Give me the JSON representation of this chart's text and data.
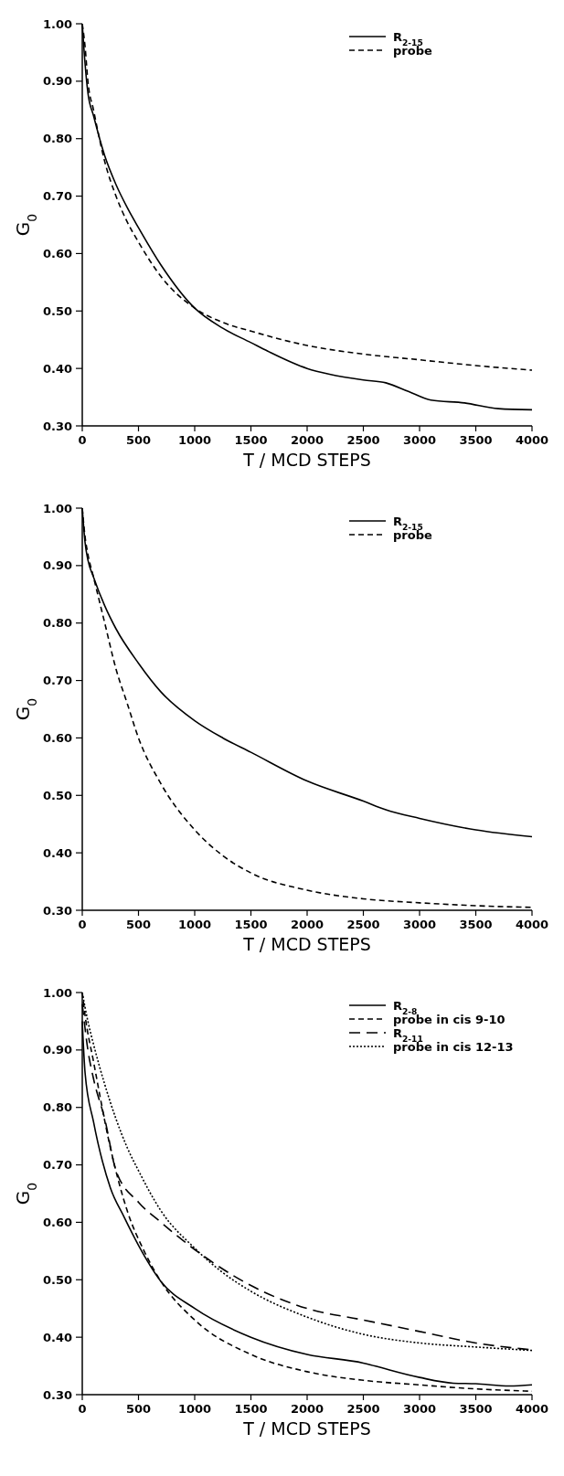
{
  "chart_data": [
    {
      "type": "line",
      "xlabel": "T / MCD STEPS",
      "ylabel": "G$_{0}$",
      "xlim": [
        0,
        4000
      ],
      "ylim": [
        0.3,
        1.0
      ],
      "xticks": [
        0,
        500,
        1000,
        1500,
        2000,
        2500,
        3000,
        3500,
        4000
      ],
      "yticks": [
        {
          "value": 0.3,
          "label": "0.30"
        },
        {
          "value": 0.4,
          "label": "0.40"
        },
        {
          "value": 0.5,
          "label": "0.50"
        },
        {
          "value": 0.6,
          "label": "0.60"
        },
        {
          "value": 0.7,
          "label": "0.70"
        },
        {
          "value": 0.8,
          "label": "0.80"
        },
        {
          "value": 0.9,
          "label": "0.90"
        },
        {
          "value": 1.0,
          "label": "1.00"
        }
      ],
      "legend": "top right",
      "grid": false,
      "series": [
        {
          "name": "R$_{2-15}$",
          "color": "#000000",
          "line_style": "solid",
          "x": [
            0,
            25,
            50,
            100,
            200,
            300,
            400,
            500,
            700,
            1000,
            1250,
            1500,
            1650,
            2000,
            2200,
            2500,
            2700,
            2900,
            3100,
            3400,
            3700,
            4000
          ],
          "values": [
            1.0,
            0.93,
            0.88,
            0.84,
            0.77,
            0.72,
            0.68,
            0.645,
            0.58,
            0.505,
            0.47,
            0.445,
            0.43,
            0.4,
            0.39,
            0.38,
            0.375,
            0.36,
            0.345,
            0.34,
            0.33,
            0.328
          ]
        },
        {
          "name": "probe",
          "color": "#000000",
          "line_style": "dashed",
          "x": [
            0,
            25,
            50,
            100,
            200,
            300,
            400,
            500,
            700,
            1000,
            1250,
            1500,
            2000,
            2500,
            3000,
            3500,
            4000
          ],
          "values": [
            1.0,
            0.96,
            0.9,
            0.85,
            0.76,
            0.7,
            0.655,
            0.62,
            0.56,
            0.505,
            0.48,
            0.465,
            0.44,
            0.425,
            0.415,
            0.405,
            0.397
          ]
        }
      ]
    },
    {
      "type": "line",
      "xlabel": "T / MCD STEPS",
      "ylabel": "G$_{0}$",
      "xlim": [
        0,
        4000
      ],
      "ylim": [
        0.3,
        1.0
      ],
      "xticks": [
        0,
        500,
        1000,
        1500,
        2000,
        2500,
        3000,
        3500,
        4000
      ],
      "yticks": [
        {
          "value": 0.3,
          "label": "0.30"
        },
        {
          "value": 0.4,
          "label": "0.40"
        },
        {
          "value": 0.5,
          "label": "0.50"
        },
        {
          "value": 0.6,
          "label": "0.60"
        },
        {
          "value": 0.7,
          "label": "0.70"
        },
        {
          "value": 0.8,
          "label": "0.80"
        },
        {
          "value": 0.9,
          "label": "0.90"
        },
        {
          "value": 1.0,
          "label": "1.00"
        }
      ],
      "legend": "top right",
      "grid": false,
      "series": [
        {
          "name": "R$_{2-15}$",
          "color": "#000000",
          "line_style": "solid",
          "x": [
            0,
            25,
            50,
            100,
            200,
            300,
            500,
            700,
            1000,
            1250,
            1500,
            2000,
            2500,
            2700,
            3000,
            3500,
            4000
          ],
          "values": [
            1.0,
            0.94,
            0.91,
            0.88,
            0.83,
            0.79,
            0.73,
            0.68,
            0.63,
            0.6,
            0.575,
            0.525,
            0.49,
            0.475,
            0.46,
            0.44,
            0.428
          ]
        },
        {
          "name": "probe",
          "color": "#000000",
          "line_style": "dashed",
          "x": [
            0,
            25,
            50,
            100,
            200,
            300,
            400,
            500,
            700,
            1000,
            1250,
            1500,
            2000,
            2500,
            3000,
            3500,
            4000
          ],
          "values": [
            1.0,
            0.95,
            0.92,
            0.88,
            0.8,
            0.72,
            0.66,
            0.6,
            0.52,
            0.44,
            0.395,
            0.365,
            0.335,
            0.32,
            0.313,
            0.308,
            0.305
          ]
        }
      ]
    },
    {
      "type": "line",
      "xlabel": "T / MCD STEPS",
      "ylabel": "G$_{0}$",
      "xlim": [
        0,
        4000
      ],
      "ylim": [
        0.3,
        1.0
      ],
      "xticks": [
        0,
        500,
        1000,
        1500,
        2000,
        2500,
        3000,
        3500,
        4000
      ],
      "yticks": [
        {
          "value": 0.3,
          "label": "0.30"
        },
        {
          "value": 0.4,
          "label": "0.40"
        },
        {
          "value": 0.5,
          "label": "0.50"
        },
        {
          "value": 0.6,
          "label": "0.60"
        },
        {
          "value": 0.7,
          "label": "0.70"
        },
        {
          "value": 0.8,
          "label": "0.80"
        },
        {
          "value": 0.9,
          "label": "0.90"
        },
        {
          "value": 1.0,
          "label": "1.00"
        }
      ],
      "legend": "top right",
      "grid": false,
      "series": [
        {
          "name": "R$_{2-8}$",
          "color": "#000000",
          "line_style": "solid",
          "x": [
            0,
            25,
            100,
            250,
            370,
            500,
            700,
            1000,
            1500,
            2000,
            2500,
            2600,
            3000,
            3300,
            3500,
            3800,
            4000
          ],
          "values": [
            0.95,
            0.86,
            0.775,
            0.66,
            0.61,
            0.56,
            0.497,
            0.45,
            0.4,
            0.37,
            0.355,
            0.35,
            0.33,
            0.32,
            0.319,
            0.315,
            0.317
          ]
        },
        {
          "name": "probe in cis 9-10",
          "color": "#000000",
          "line_style": "dashed",
          "x": [
            0,
            25,
            100,
            250,
            400,
            550,
            700,
            1000,
            1500,
            2000,
            2500,
            3000,
            3500,
            4000
          ],
          "values": [
            1.0,
            0.96,
            0.88,
            0.73,
            0.62,
            0.55,
            0.497,
            0.43,
            0.37,
            0.34,
            0.325,
            0.317,
            0.31,
            0.306
          ]
        },
        {
          "name": "R$_{2-11}$",
          "color": "#000000",
          "line_style": "longdash",
          "x": [
            0,
            50,
            100,
            200,
            300,
            500,
            700,
            950,
            1200,
            1500,
            2000,
            2500,
            3000,
            3500,
            4000
          ],
          "values": [
            0.98,
            0.9,
            0.85,
            0.78,
            0.69,
            0.635,
            0.6,
            0.56,
            0.525,
            0.49,
            0.45,
            0.43,
            0.41,
            0.39,
            0.378
          ]
        },
        {
          "name": "probe in cis 12-13",
          "color": "#000000",
          "line_style": "dotted",
          "x": [
            0,
            50,
            100,
            200,
            300,
            400,
            500,
            700,
            1000,
            1200,
            1500,
            2000,
            2500,
            3000,
            3500,
            4000
          ],
          "values": [
            1.0,
            0.95,
            0.91,
            0.84,
            0.78,
            0.73,
            0.69,
            0.62,
            0.555,
            0.52,
            0.48,
            0.435,
            0.405,
            0.39,
            0.383,
            0.377
          ]
        }
      ]
    }
  ]
}
